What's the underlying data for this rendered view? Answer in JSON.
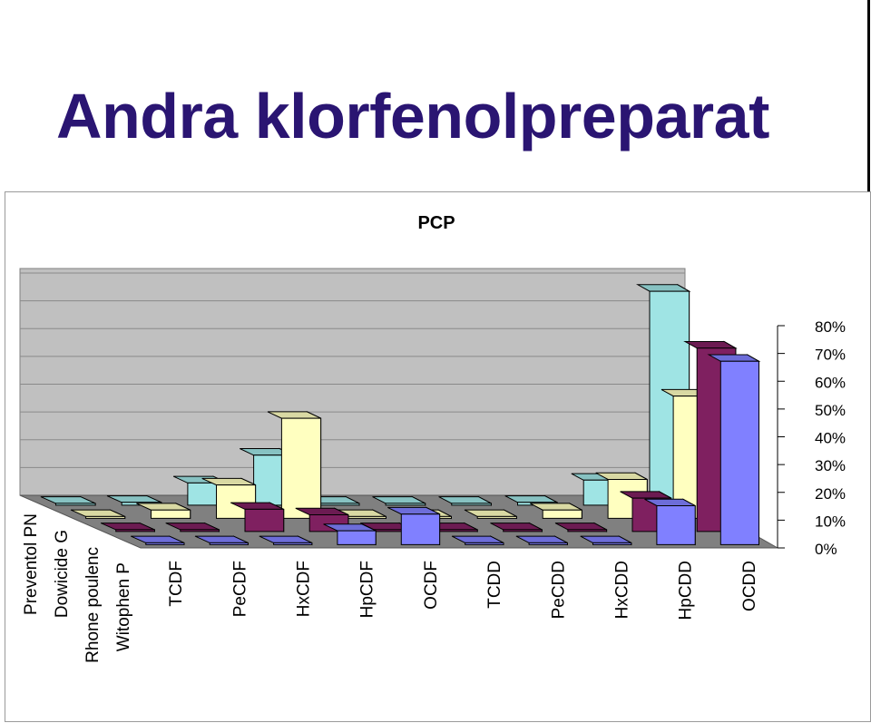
{
  "slide": {
    "title": "Andra klorfenolpreparat"
  },
  "chart_data": {
    "type": "bar",
    "subtype": "3d-column",
    "title": "PCP",
    "categories": [
      "TCDF",
      "PeCDF",
      "HxCDF",
      "HpCDF",
      "OCDF",
      "TCDD",
      "PeCDD",
      "HxCDD",
      "HpCDD",
      "OCDD"
    ],
    "series": [
      {
        "name": "Preventol PN",
        "values": [
          0,
          1,
          8,
          18,
          0,
          0,
          0,
          1,
          9,
          77
        ]
      },
      {
        "name": "Dowicide G",
        "values": [
          0,
          3,
          12,
          36,
          0,
          0,
          0,
          3,
          14,
          44
        ]
      },
      {
        "name": "Rhone poulenc",
        "values": [
          0,
          0,
          8,
          6,
          0,
          0,
          0,
          0,
          12,
          66
        ]
      },
      {
        "name": "Witophen P",
        "values": [
          0,
          0,
          0,
          5,
          11,
          0,
          0,
          0,
          14,
          66
        ]
      }
    ],
    "colors": [
      "#9fe4e4",
      "#ffffc0",
      "#7f2060",
      "#8080ff"
    ],
    "ylim": [
      0,
      80
    ],
    "yticks": [
      "0%",
      "10%",
      "20%",
      "30%",
      "40%",
      "50%",
      "60%",
      "70%",
      "80%"
    ],
    "grid": true,
    "legend": "depth-axis-labels"
  }
}
